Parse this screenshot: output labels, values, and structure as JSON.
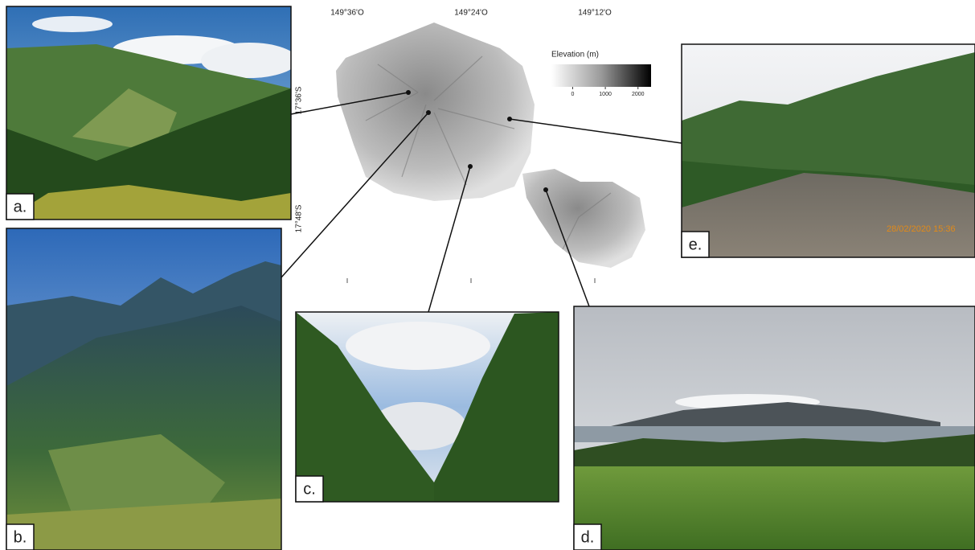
{
  "map": {
    "lon_labels": [
      "149°36'O",
      "149°24'O",
      "149°12'O"
    ],
    "lat_labels": [
      "17°36'S",
      "17°48'S"
    ],
    "legend": {
      "title": "Elevation (m)",
      "range": [
        -650,
        2400
      ],
      "ticks": [
        0,
        1000,
        2000
      ]
    }
  },
  "panels": [
    {
      "label": "a."
    },
    {
      "label": "b."
    },
    {
      "label": "c."
    },
    {
      "label": "d."
    },
    {
      "label": "e."
    }
  ],
  "timestamp": "28/02/2020 15:36"
}
